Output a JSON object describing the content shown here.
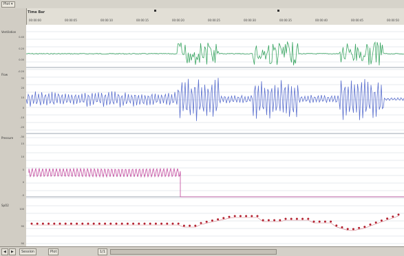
{
  "toolbar": {
    "view_label": "Plot ▾"
  },
  "timebar": {
    "title": "Time Bar",
    "ticks": [
      "00:00:00",
      "00:00:05",
      "00:00:10",
      "00:00:15",
      "00:00:20",
      "00:00:25",
      "00:00:30",
      "00:00:35",
      "00:00:40",
      "00:00:45",
      "00:00:50"
    ]
  },
  "channels": [
    {
      "label": "Ventilation",
      "color": "#3aa562",
      "ticks": [
        "0.40",
        "0.20",
        "0.00",
        "-0.20"
      ]
    },
    {
      "label": "Flow",
      "color": "#5a6fce",
      "ticks": [
        "30",
        "20",
        "10",
        "0",
        "-10",
        "-20",
        "-30"
      ]
    },
    {
      "label": "Pressure",
      "color": "#c0449b",
      "ticks": [
        "15",
        "10",
        "5",
        "0",
        "-5"
      ]
    },
    {
      "label": "SpO2",
      "color": "#b3202f",
      "ticks": [
        "100",
        "95",
        "90"
      ]
    }
  ],
  "status": {
    "tabs": [
      "Session",
      "Plot"
    ],
    "page": "1/1"
  },
  "colors": {
    "background": "#d4d0c8",
    "plot": "#ffffff",
    "grid": "#bfc7cf"
  }
}
